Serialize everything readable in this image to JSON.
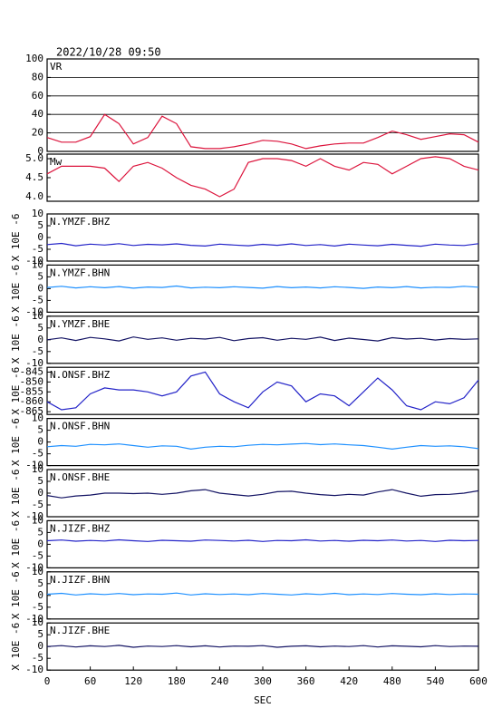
{
  "title": "2022/10/28 09:50",
  "chart_data": [
    {
      "type": "line",
      "name": "VR",
      "color": "#dc143c",
      "grid": true,
      "xlim": [
        0,
        600
      ],
      "ylim": [
        0,
        100
      ],
      "yticks": [
        0,
        20,
        40,
        60,
        80,
        100
      ],
      "x": [
        0,
        20,
        40,
        60,
        80,
        100,
        120,
        140,
        160,
        180,
        200,
        220,
        240,
        260,
        280,
        300,
        320,
        340,
        360,
        380,
        400,
        420,
        440,
        460,
        480,
        500,
        520,
        540,
        560,
        580,
        600
      ],
      "values": [
        15,
        10,
        10,
        16,
        40,
        30,
        8,
        15,
        38,
        30,
        5,
        3,
        3,
        5,
        8,
        12,
        11,
        8,
        3,
        6,
        8,
        9,
        9,
        15,
        22,
        18,
        13,
        16,
        19,
        18,
        10
      ]
    },
    {
      "type": "line",
      "name": "Mw",
      "color": "#dc143c",
      "grid": false,
      "xlim": [
        0,
        600
      ],
      "ylim": [
        3.88,
        5.12
      ],
      "yticks": [
        {
          "value": 4,
          "label": "4.0"
        },
        4.5,
        {
          "value": 5,
          "label": "5.0"
        }
      ],
      "x": [
        0,
        20,
        40,
        60,
        80,
        100,
        120,
        140,
        160,
        180,
        200,
        220,
        240,
        260,
        280,
        300,
        320,
        340,
        360,
        380,
        400,
        420,
        440,
        460,
        480,
        500,
        520,
        540,
        560,
        580,
        600
      ],
      "values": [
        4.6,
        4.8,
        4.8,
        4.8,
        4.75,
        4.4,
        4.8,
        4.9,
        4.75,
        4.5,
        4.3,
        4.2,
        4.0,
        4.2,
        4.9,
        5.0,
        5.0,
        4.95,
        4.8,
        5.0,
        4.8,
        4.7,
        4.9,
        4.85,
        4.6,
        4.8,
        5.0,
        5.05,
        5.0,
        4.8,
        4.7
      ]
    },
    {
      "type": "line",
      "name": "N.YMZF.BHZ",
      "ylabel": "X 10E -6",
      "color": "#2323c8",
      "grid": false,
      "xlim": [
        0,
        600
      ],
      "ylim": [
        -10,
        10
      ],
      "yticks": [
        -10,
        -5,
        0,
        5,
        10
      ],
      "x": [
        0,
        20,
        40,
        60,
        80,
        100,
        120,
        140,
        160,
        180,
        200,
        220,
        240,
        260,
        280,
        300,
        320,
        340,
        360,
        380,
        400,
        420,
        440,
        460,
        480,
        500,
        520,
        540,
        560,
        580,
        600
      ],
      "values": [
        -3,
        -2.5,
        -3.5,
        -2.8,
        -3.2,
        -2.6,
        -3.4,
        -2.9,
        -3.1,
        -2.7,
        -3.3,
        -3.6,
        -2.8,
        -3.2,
        -3.5,
        -2.9,
        -3.3,
        -2.7,
        -3.4,
        -3.0,
        -3.6,
        -2.8,
        -3.2,
        -3.5,
        -2.9,
        -3.3,
        -3.7,
        -2.8,
        -3.2,
        -3.4,
        -2.6
      ]
    },
    {
      "type": "line",
      "name": "N.YMZF.BHN",
      "ylabel": "X 10E -6",
      "color": "#1e90ff",
      "grid": false,
      "xlim": [
        0,
        600
      ],
      "ylim": [
        -10,
        10
      ],
      "yticks": [
        -10,
        -5,
        0,
        5,
        10
      ],
      "x": [
        0,
        20,
        40,
        60,
        80,
        100,
        120,
        140,
        160,
        180,
        200,
        220,
        240,
        260,
        280,
        300,
        320,
        340,
        360,
        380,
        400,
        420,
        440,
        460,
        480,
        500,
        520,
        540,
        560,
        580,
        600
      ],
      "values": [
        0.5,
        1,
        0.3,
        0.8,
        0.4,
        0.9,
        0.2,
        0.7,
        0.5,
        1.1,
        0.3,
        0.6,
        0.4,
        0.8,
        0.5,
        0.2,
        0.9,
        0.4,
        0.7,
        0.3,
        0.8,
        0.5,
        0.1,
        0.7,
        0.4,
        0.9,
        0.3,
        0.6,
        0.5,
        1,
        0.6
      ]
    },
    {
      "type": "line",
      "name": "N.YMZF.BHE",
      "ylabel": "X 10E -6",
      "color": "#141464",
      "grid": false,
      "xlim": [
        0,
        600
      ],
      "ylim": [
        -10,
        10
      ],
      "yticks": [
        -10,
        -5,
        0,
        5,
        10
      ],
      "x": [
        0,
        20,
        40,
        60,
        80,
        100,
        120,
        140,
        160,
        180,
        200,
        220,
        240,
        260,
        280,
        300,
        320,
        340,
        360,
        380,
        400,
        420,
        440,
        460,
        480,
        500,
        520,
        540,
        560,
        580,
        600
      ],
      "values": [
        0,
        0.8,
        -0.3,
        1,
        0.4,
        -0.5,
        1.2,
        0.2,
        0.8,
        -0.2,
        0.6,
        0.3,
        1,
        -0.4,
        0.5,
        0.9,
        -0.2,
        0.6,
        0.2,
        1.1,
        -0.3,
        0.7,
        0.1,
        -0.5,
        0.9,
        0.3,
        0.6,
        -0.1,
        0.5,
        0.2,
        0.4
      ]
    },
    {
      "type": "line",
      "name": "N.ONSF.BHZ",
      "ylabel": "X 10E -6",
      "color": "#2323c8",
      "grid": false,
      "xlim": [
        0,
        600
      ],
      "ylim": [
        -866.4,
        -842.6
      ],
      "yticks": [
        -865,
        -860,
        -855,
        -850,
        -845
      ],
      "x": [
        0,
        20,
        40,
        60,
        80,
        100,
        120,
        140,
        160,
        180,
        200,
        220,
        240,
        260,
        280,
        300,
        320,
        340,
        360,
        380,
        400,
        420,
        440,
        460,
        480,
        500,
        520,
        540,
        560,
        580,
        600
      ],
      "values": [
        -860,
        -864,
        -863,
        -856,
        -853,
        -854,
        -854,
        -855,
        -857,
        -855,
        -847,
        -845,
        -856,
        -860,
        -863,
        -855,
        -850,
        -852,
        -860,
        -856,
        -857,
        -862,
        -855,
        -848,
        -854,
        -862,
        -864,
        -860,
        -861,
        -858,
        -849
      ]
    },
    {
      "type": "line",
      "name": "N.ONSF.BHN",
      "ylabel": "X 10E -6",
      "color": "#1e90ff",
      "grid": false,
      "xlim": [
        0,
        600
      ],
      "ylim": [
        -10,
        10
      ],
      "yticks": [
        -10,
        -5,
        0,
        5,
        10
      ],
      "x": [
        0,
        20,
        40,
        60,
        80,
        100,
        120,
        140,
        160,
        180,
        200,
        220,
        240,
        260,
        280,
        300,
        320,
        340,
        360,
        380,
        400,
        420,
        440,
        460,
        480,
        500,
        520,
        540,
        560,
        580,
        600
      ],
      "values": [
        -2,
        -1.5,
        -1.8,
        -1,
        -1.2,
        -0.8,
        -1.5,
        -2.2,
        -1.6,
        -1.8,
        -3,
        -2.2,
        -1.8,
        -2,
        -1.4,
        -1,
        -1.2,
        -0.9,
        -0.6,
        -1.1,
        -0.8,
        -1.2,
        -1.5,
        -2.2,
        -3,
        -2.2,
        -1.5,
        -1.8,
        -1.6,
        -2,
        -2.8
      ]
    },
    {
      "type": "line",
      "name": "N.ONSF.BHE",
      "ylabel": "X 10E -6",
      "color": "#141464",
      "grid": false,
      "xlim": [
        0,
        600
      ],
      "ylim": [
        -10,
        10
      ],
      "yticks": [
        -10,
        -5,
        0,
        5,
        10
      ],
      "x": [
        0,
        20,
        40,
        60,
        80,
        100,
        120,
        140,
        160,
        180,
        200,
        220,
        240,
        260,
        280,
        300,
        320,
        340,
        360,
        380,
        400,
        420,
        440,
        460,
        480,
        500,
        520,
        540,
        560,
        580,
        600
      ],
      "values": [
        -1,
        -2,
        -1.2,
        -0.8,
        0,
        0,
        -0.2,
        0,
        -0.5,
        0,
        1,
        1.5,
        0,
        -0.6,
        -1.2,
        -0.5,
        0.6,
        0.8,
        0,
        -0.6,
        -1,
        -0.5,
        -0.8,
        0.5,
        1.5,
        0,
        -1.3,
        -0.6,
        -0.5,
        0,
        1
      ]
    },
    {
      "type": "line",
      "name": "N.JIZF.BHZ",
      "ylabel": "X 10E -6",
      "color": "#2323c8",
      "grid": false,
      "xlim": [
        0,
        600
      ],
      "ylim": [
        -10,
        10
      ],
      "yticks": [
        -10,
        -5,
        0,
        5,
        10
      ],
      "x": [
        0,
        20,
        40,
        60,
        80,
        100,
        120,
        140,
        160,
        180,
        200,
        220,
        240,
        260,
        280,
        300,
        320,
        340,
        360,
        380,
        400,
        420,
        440,
        460,
        480,
        500,
        520,
        540,
        560,
        580,
        600
      ],
      "values": [
        1.5,
        1.8,
        1.3,
        1.6,
        1.4,
        1.9,
        1.5,
        1.2,
        1.7,
        1.5,
        1.3,
        1.8,
        1.6,
        1.4,
        1.7,
        1.2,
        1.6,
        1.5,
        1.9,
        1.4,
        1.6,
        1.3,
        1.7,
        1.5,
        1.8,
        1.4,
        1.6,
        1.2,
        1.7,
        1.5,
        1.6
      ]
    },
    {
      "type": "line",
      "name": "N.JIZF.BHN",
      "ylabel": "X 10E -6",
      "color": "#1e90ff",
      "grid": false,
      "xlim": [
        0,
        600
      ],
      "ylim": [
        -10,
        10
      ],
      "yticks": [
        -10,
        -5,
        0,
        5,
        10
      ],
      "x": [
        0,
        20,
        40,
        60,
        80,
        100,
        120,
        140,
        160,
        180,
        200,
        220,
        240,
        260,
        280,
        300,
        320,
        340,
        360,
        380,
        400,
        420,
        440,
        460,
        480,
        500,
        520,
        540,
        560,
        580,
        600
      ],
      "values": [
        0.5,
        0.9,
        0.2,
        0.7,
        0.4,
        0.8,
        0.3,
        0.6,
        0.5,
        1,
        0.2,
        0.7,
        0.4,
        0.6,
        0.3,
        0.8,
        0.5,
        0.2,
        0.7,
        0.4,
        0.9,
        0.3,
        0.6,
        0.4,
        0.8,
        0.5,
        0.3,
        0.7,
        0.4,
        0.6,
        0.5
      ]
    },
    {
      "type": "line",
      "name": "N.JIZF.BHE",
      "ylabel": "X 10E -6",
      "color": "#141464",
      "grid": false,
      "xlim": [
        0,
        600
      ],
      "ylim": [
        -10,
        10
      ],
      "yticks": [
        -10,
        -5,
        0,
        5,
        10
      ],
      "xticks": [
        0,
        60,
        120,
        180,
        240,
        300,
        360,
        420,
        480,
        540,
        600
      ],
      "xlabel": "SEC",
      "x": [
        0,
        20,
        40,
        60,
        80,
        100,
        120,
        140,
        160,
        180,
        200,
        220,
        240,
        260,
        280,
        300,
        320,
        340,
        360,
        380,
        400,
        420,
        440,
        460,
        480,
        500,
        520,
        540,
        560,
        580,
        600
      ],
      "values": [
        0,
        0.4,
        -0.2,
        0.3,
        0,
        0.5,
        -0.3,
        0.2,
        0,
        0.4,
        -0.1,
        0.3,
        -0.2,
        0.2,
        0.1,
        0.4,
        -0.3,
        0.1,
        0.3,
        -0.1,
        0.2,
        0,
        0.4,
        -0.2,
        0.3,
        0.1,
        -0.1,
        0.4,
        0,
        0.2,
        0.1
      ]
    }
  ]
}
